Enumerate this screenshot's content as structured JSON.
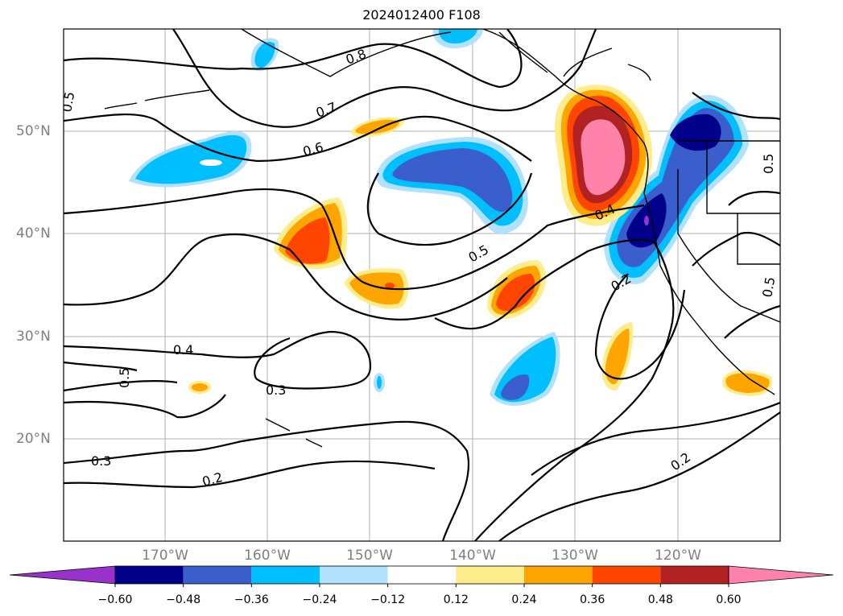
{
  "title": "2024012400 F108",
  "lon_labels": [
    "170°W",
    "160°W",
    "150°W",
    "140°W",
    "130°W",
    "120°W"
  ],
  "lat_labels": [
    "50°N",
    "40°N",
    "30°N",
    "20°N"
  ],
  "contour_labels": [
    "0.8",
    "0.7",
    "0.6",
    "0.5",
    "0.5",
    "0.5",
    "0.5",
    "0.5",
    "0.4",
    "0.4",
    "0.3",
    "0.3",
    "0.2",
    "0.2",
    "0.2"
  ],
  "colorbar": {
    "ticks": [
      "−0.60",
      "−0.48",
      "−0.36",
      "−0.24",
      "−0.12",
      "0.12",
      "0.24",
      "0.36",
      "0.48",
      "0.60"
    ],
    "colors": [
      "#9932cc",
      "#00008b",
      "#3a5fcd",
      "#00bfff",
      "#b0e2ff",
      "#ffffff",
      "#ffec8b",
      "#ffa500",
      "#ff4500",
      "#b22222",
      "#ff82ab"
    ]
  }
}
